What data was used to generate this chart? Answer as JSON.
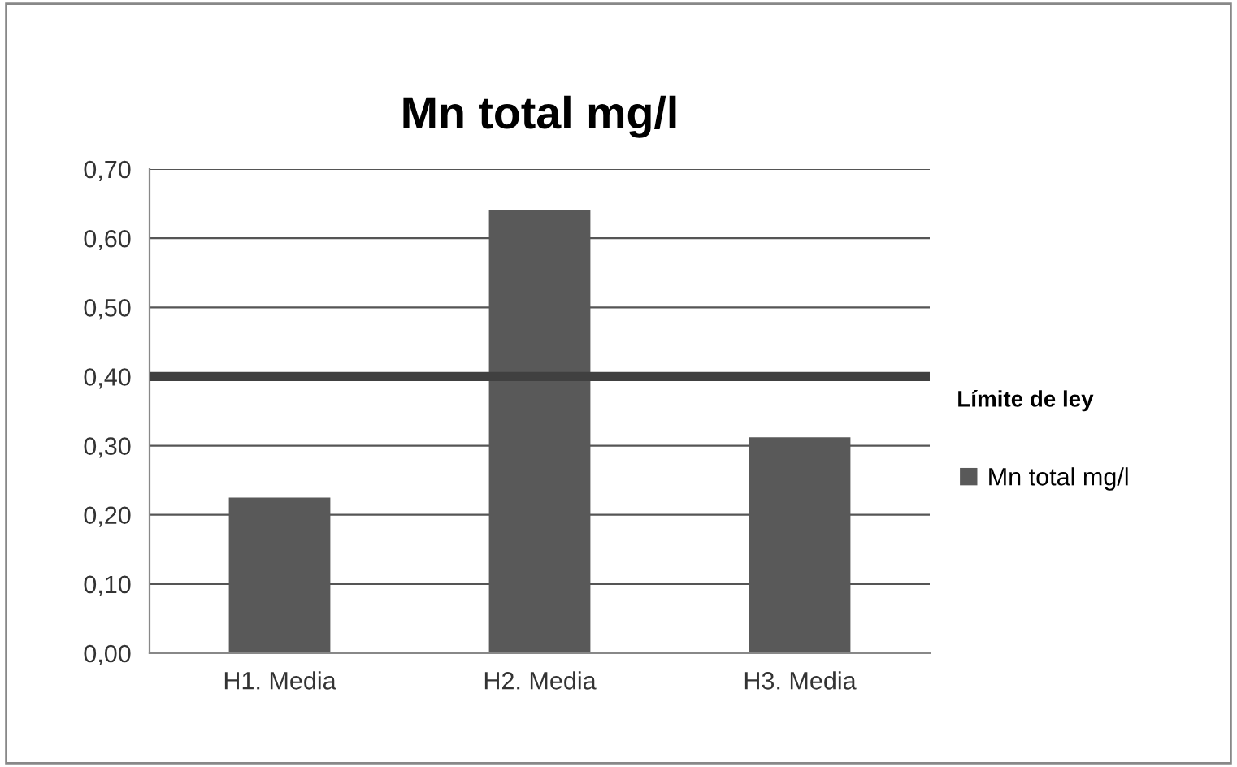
{
  "chart_data": {
    "type": "bar",
    "title": "Mn total mg/l",
    "categories": [
      "H1. Media",
      "H2. Media",
      "H3. Media"
    ],
    "series": [
      {
        "name": "Mn total mg/l",
        "color": "#595959",
        "values": [
          0.225,
          0.64,
          0.312
        ]
      }
    ],
    "ylim": [
      0,
      0.7
    ],
    "yticks": [
      {
        "value": 0,
        "label": "0,00"
      },
      {
        "value": 0.1,
        "label": "0,10"
      },
      {
        "value": 0.2,
        "label": "0,20"
      },
      {
        "value": 0.3,
        "label": "0,30"
      },
      {
        "value": 0.4,
        "label": "0,40"
      },
      {
        "value": 0.5,
        "label": "0,50"
      },
      {
        "value": 0.6,
        "label": "0,60"
      },
      {
        "value": 0.7,
        "label": "0,70"
      }
    ],
    "ref_lines": [
      {
        "axis": "y",
        "value": 0.4,
        "label": "Límite de ley",
        "color": "#404040"
      }
    ],
    "grid": "y",
    "legend": "right"
  }
}
